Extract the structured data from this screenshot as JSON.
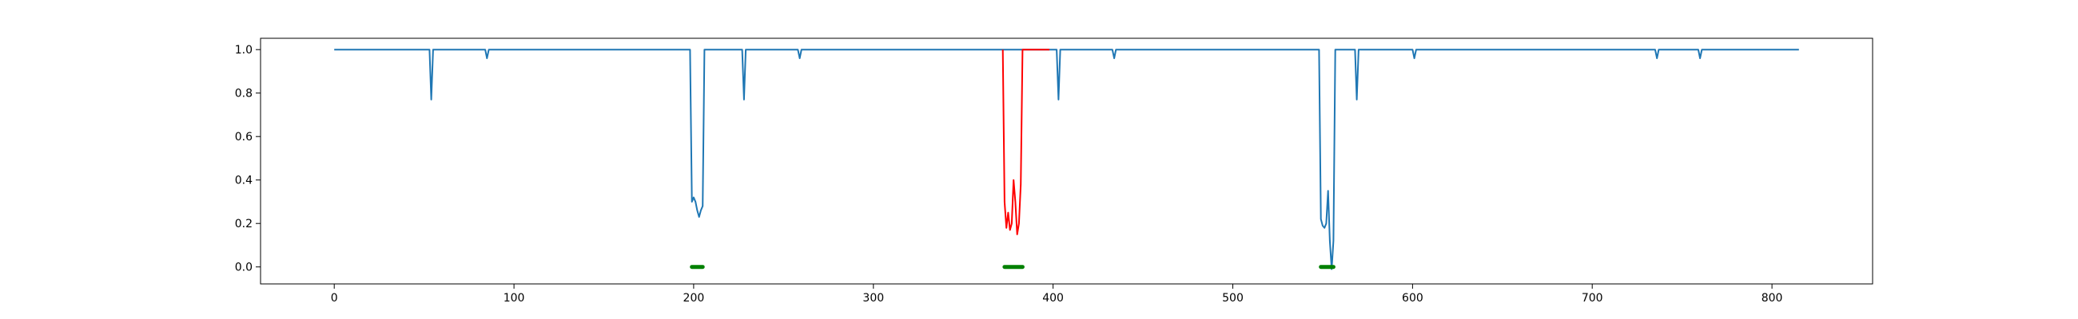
{
  "chart_data": {
    "type": "line",
    "title": "",
    "xlabel": "",
    "ylabel": "",
    "xlim": [
      -41,
      856
    ],
    "ylim": [
      -0.078,
      1.052
    ],
    "xticks": [
      0,
      100,
      200,
      300,
      400,
      500,
      600,
      700,
      800
    ],
    "xtick_labels": [
      "0",
      "100",
      "200",
      "300",
      "400",
      "500",
      "600",
      "700",
      "800"
    ],
    "yticks": [
      0.0,
      0.2,
      0.4,
      0.6,
      0.8,
      1.0
    ],
    "ytick_labels": [
      "0.0",
      "0.2",
      "0.4",
      "0.6",
      "0.8",
      "1.0"
    ],
    "grid": false,
    "legend": "none",
    "series": [
      {
        "color": "#1f77b4",
        "x": [
          0,
          53,
          54,
          55,
          84,
          85,
          86,
          198,
          199,
          200,
          201,
          202,
          203,
          204,
          205,
          206,
          207,
          227,
          228,
          229,
          258,
          259,
          260,
          372,
          402,
          403,
          404,
          433,
          434,
          435,
          548,
          549,
          550,
          551,
          552,
          553,
          554,
          555,
          556,
          557,
          558,
          568,
          569,
          570,
          600,
          601,
          602,
          735,
          736,
          737,
          759,
          760,
          761,
          815
        ],
        "y": [
          1.0,
          1.0,
          0.77,
          1.0,
          1.0,
          0.96,
          1.0,
          1.0,
          0.3,
          0.32,
          0.3,
          0.26,
          0.23,
          0.26,
          0.28,
          1.0,
          1.0,
          1.0,
          0.77,
          1.0,
          1.0,
          0.96,
          1.0,
          1.0,
          1.0,
          0.77,
          1.0,
          1.0,
          0.96,
          1.0,
          1.0,
          0.22,
          0.19,
          0.18,
          0.2,
          0.35,
          0.12,
          -0.01,
          0.12,
          1.0,
          1.0,
          1.0,
          0.77,
          1.0,
          1.0,
          0.96,
          1.0,
          1.0,
          0.96,
          1.0,
          1.0,
          0.96,
          1.0,
          1.0
        ]
      },
      {
        "color": "#ff0000",
        "x": [
          372,
          373,
          374,
          375,
          376,
          377,
          378,
          379,
          380,
          381,
          382,
          383,
          384,
          398
        ],
        "y": [
          1.0,
          0.3,
          0.18,
          0.25,
          0.17,
          0.2,
          0.4,
          0.3,
          0.15,
          0.2,
          0.38,
          1.0,
          1.0,
          1.0
        ]
      }
    ],
    "markers": {
      "color": "#008000",
      "y": 0.0,
      "segments": [
        [
          199,
          205
        ],
        [
          373,
          383
        ],
        [
          549,
          556
        ]
      ]
    }
  }
}
